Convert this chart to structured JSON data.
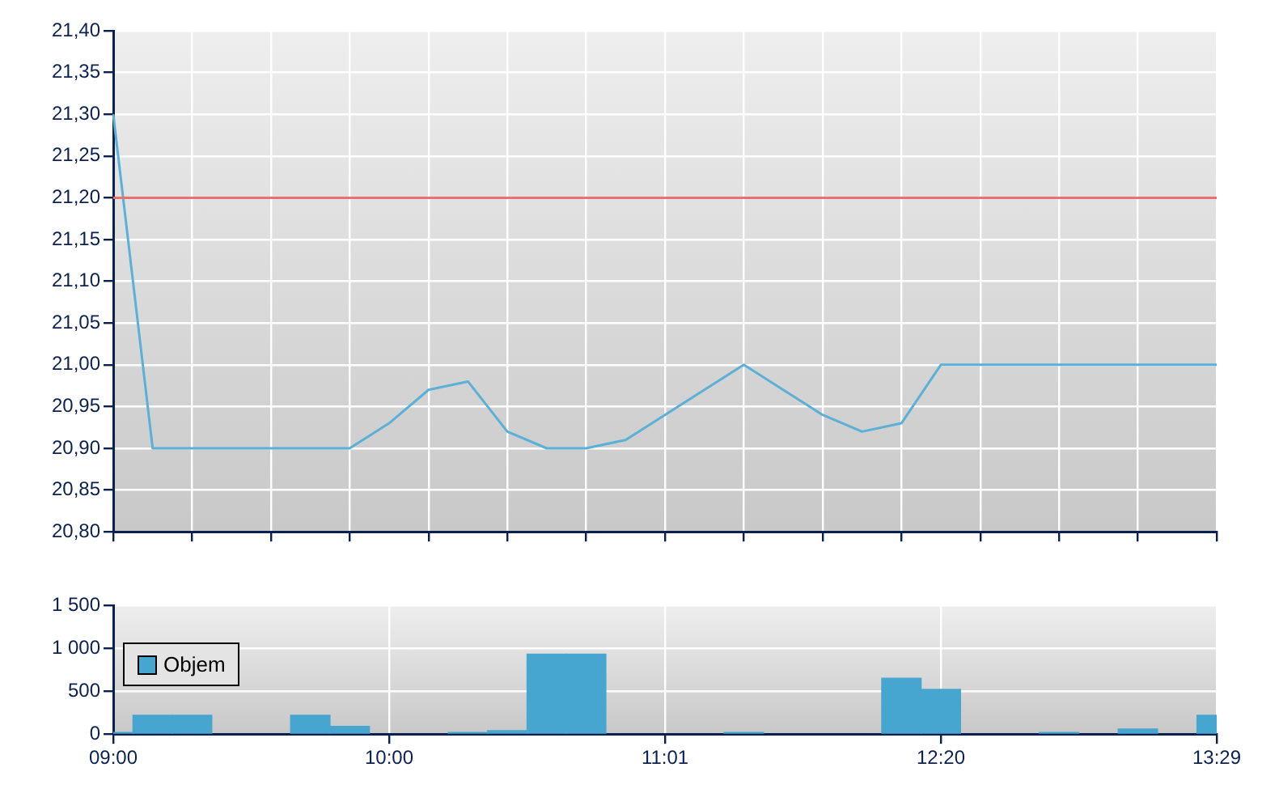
{
  "chart_data": [
    {
      "type": "line",
      "categories": [
        null,
        null,
        null,
        null,
        null,
        null,
        null,
        null,
        null,
        null,
        null,
        null,
        null,
        null,
        null,
        null,
        null,
        null,
        null,
        null,
        null,
        null,
        null,
        null,
        null,
        null,
        null,
        null,
        null
      ],
      "series": [
        {
          "color": "#5ab0d6",
          "values": [
            21.3,
            20.9,
            20.9,
            20.9,
            20.9,
            20.9,
            20.9,
            20.93,
            20.97,
            20.98,
            20.92,
            20.9,
            20.9,
            20.91,
            20.94,
            20.97,
            21.0,
            20.97,
            20.94,
            20.92,
            20.93,
            21.0,
            21.0,
            21.0,
            21.0,
            21.0,
            21.0,
            21.0,
            21.0
          ]
        }
      ],
      "ylim": [
        20.8,
        21.4
      ],
      "yticks": [
        {
          "value": 20.8,
          "label": "20,80"
        },
        {
          "value": 20.85,
          "label": "20,85"
        },
        {
          "value": 20.9,
          "label": "20,90"
        },
        {
          "value": 20.95,
          "label": "20,95"
        },
        {
          "value": 21.0,
          "label": "21,00"
        },
        {
          "value": 21.05,
          "label": "21,05"
        },
        {
          "value": 21.1,
          "label": "21,10"
        },
        {
          "value": 21.15,
          "label": "21,15"
        },
        {
          "value": 21.2,
          "label": "21,20"
        },
        {
          "value": 21.25,
          "label": "21,25"
        },
        {
          "value": 21.3,
          "label": "21,30"
        },
        {
          "value": 21.35,
          "label": "21,35"
        },
        {
          "value": 21.4,
          "label": "21,40"
        }
      ],
      "ref_lines": [
        {
          "axis": "y",
          "value": 21.2,
          "color": "#e87070"
        }
      ],
      "grid": true,
      "tick_labels": "y"
    },
    {
      "type": "bar",
      "categories": [
        "09:00",
        null,
        null,
        null,
        null,
        null,
        null,
        "10:00",
        null,
        null,
        null,
        null,
        null,
        null,
        "11:01",
        null,
        null,
        null,
        null,
        null,
        null,
        "12:20",
        null,
        null,
        null,
        null,
        null,
        null,
        "13:29"
      ],
      "series": [
        {
          "name": "Objem",
          "color": "#46a6cf",
          "values": [
            20,
            220,
            220,
            null,
            null,
            220,
            90,
            null,
            null,
            20,
            40,
            930,
            930,
            null,
            null,
            null,
            20,
            null,
            null,
            null,
            650,
            520,
            null,
            null,
            20,
            null,
            60,
            null,
            220
          ]
        }
      ],
      "ylim": [
        0,
        1500
      ],
      "yticks": [
        0,
        500,
        {
          "value": 1000,
          "label": "1 000"
        },
        {
          "value": 1500,
          "label": "1 500"
        }
      ],
      "grid": true,
      "legend": "top left"
    }
  ]
}
